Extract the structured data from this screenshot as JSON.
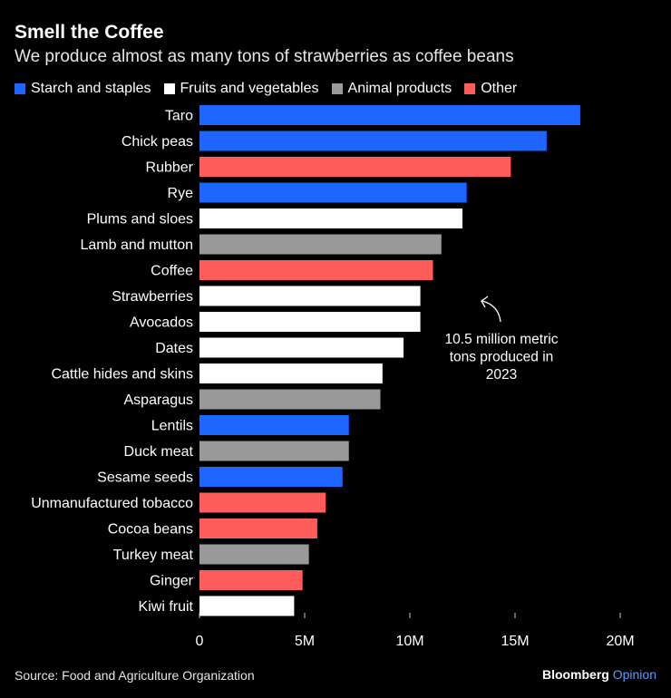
{
  "header": {
    "title": "Smell the Coffee",
    "subtitle": "We produce almost as many tons of strawberries as coffee beans"
  },
  "legend": [
    {
      "name": "Starch and staples",
      "color": "#1e66ff"
    },
    {
      "name": "Fruits and vegetables",
      "color": "#ffffff"
    },
    {
      "name": "Animal products",
      "color": "#999999"
    },
    {
      "name": "Other",
      "color": "#ff5c5c"
    }
  ],
  "chart_data": {
    "type": "bar",
    "orientation": "horizontal",
    "title": "Smell the Coffee",
    "subtitle": "We produce almost as many tons of strawberries as coffee beans",
    "categories": [
      "Taro",
      "Chick peas",
      "Rubber",
      "Rye",
      "Plums and sloes",
      "Lamb and mutton",
      "Coffee",
      "Strawberries",
      "Avocados",
      "Dates",
      "Cattle hides and skins",
      "Asparagus",
      "Lentils",
      "Duck meat",
      "Sesame seeds",
      "Unmanufactured tobacco",
      "Cocoa beans",
      "Turkey meat",
      "Ginger",
      "Kiwi fruit"
    ],
    "values": [
      18.1,
      16.5,
      14.8,
      12.7,
      12.5,
      11.5,
      11.1,
      10.5,
      10.5,
      9.7,
      8.7,
      8.6,
      7.1,
      7.1,
      6.8,
      6.0,
      5.6,
      5.2,
      4.9,
      4.5
    ],
    "groups": [
      "Starch and staples",
      "Starch and staples",
      "Other",
      "Starch and staples",
      "Fruits and vegetables",
      "Animal products",
      "Other",
      "Fruits and vegetables",
      "Fruits and vegetables",
      "Fruits and vegetables",
      "Fruits and vegetables",
      "Animal products",
      "Starch and staples",
      "Animal products",
      "Starch and staples",
      "Other",
      "Other",
      "Animal products",
      "Other",
      "Fruits and vegetables"
    ],
    "xlim": [
      0,
      20
    ],
    "xticks": [
      0,
      5,
      10,
      15,
      20
    ],
    "xtick_labels": [
      "0",
      "5M",
      "10M",
      "15M",
      "20M"
    ],
    "grid": false,
    "legend_position": "top-left",
    "annotation": {
      "lines": [
        "10.5 million metric",
        "tons produced in",
        "2023"
      ],
      "points_to": "Strawberries"
    }
  },
  "footer": {
    "source": "Source: Food and Agriculture Organization",
    "brand_main": "Bloomberg",
    "brand_sub": "Opinion"
  }
}
